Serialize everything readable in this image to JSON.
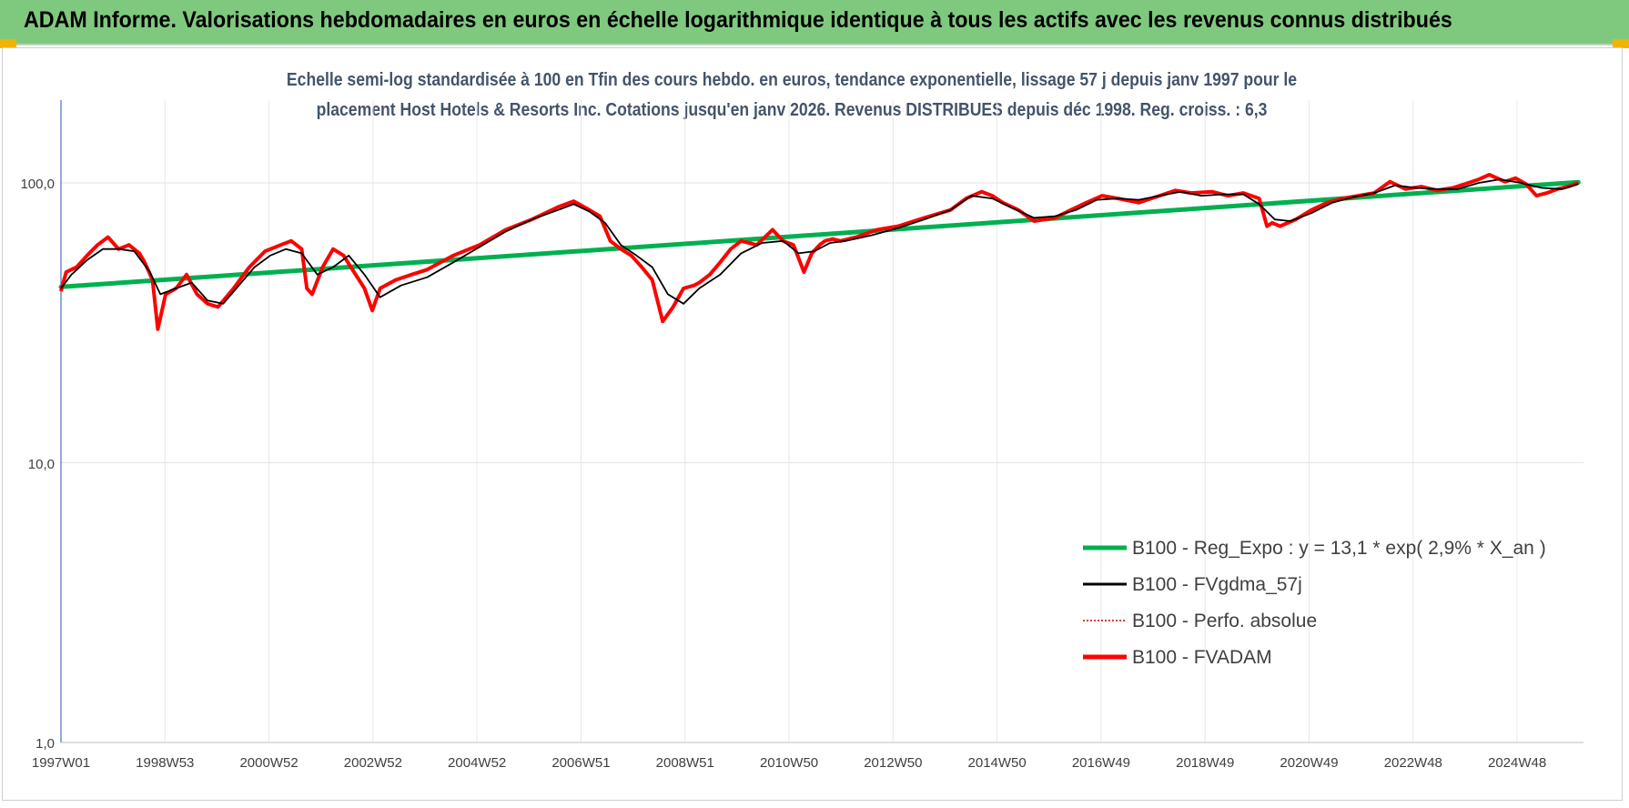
{
  "header": {
    "title": "ADAM Informe. Valorisations hebdomadaires en euros en échelle logarithmique identique à tous les actifs avec les revenus connus distribués"
  },
  "chart_data": {
    "type": "line",
    "title_line1": "Echelle semi-log standardisée à 100 en Tfin des cours hebdo. en euros, tendance exponentielle, lissage 57 j depuis janv 1997 pour le",
    "title_line2": "placement Host Hotels & Resorts Inc. Cotations jusqu'en janv 2026. Revenus DISTRIBUES depuis déc 1998. Reg. croiss. : 6,3",
    "y_scale": "log",
    "ylim": [
      1,
      180
    ],
    "y_ticks": [
      "1,0",
      "10,0",
      "100,0"
    ],
    "xlim": [
      1997.0,
      2026.1
    ],
    "x_tick_labels": [
      "1997W01",
      "1998W53",
      "2000W52",
      "2002W52",
      "2004W52",
      "2006W51",
      "2008W51",
      "2010W50",
      "2012W50",
      "2014W50",
      "2016W49",
      "2018W49",
      "2020W49",
      "2022W48",
      "2024W48"
    ],
    "grid": true,
    "legend_position": "bottom-right",
    "series": [
      {
        "name": "B100 - Reg_Expo : y = 13,1 * exp( 2,9% *  X_an )",
        "color": "#00b050",
        "style": "solid",
        "x": [
          1997.0,
          2026.0
        ],
        "y": [
          42.5,
          100.5
        ]
      },
      {
        "name": "B100 - FVgdma_57j",
        "color": "#000000",
        "style": "solid"
      },
      {
        "name": "B100 - Perfo. absolue",
        "color": "#c00000",
        "style": "dotted"
      },
      {
        "name": "B100 - FVADAM",
        "color": "#ff0000",
        "style": "solid"
      }
    ],
    "fvadam": {
      "x": [
        1997.0,
        1997.1,
        1997.3,
        1997.5,
        1997.7,
        1997.9,
        1998.1,
        1998.3,
        1998.5,
        1998.6,
        1998.75,
        1998.85,
        1999.0,
        1999.2,
        1999.4,
        1999.6,
        1999.8,
        2000.0,
        2000.3,
        2000.6,
        2000.9,
        2001.2,
        2001.4,
        2001.6,
        2001.7,
        2001.8,
        2002.0,
        2002.2,
        2002.4,
        2002.6,
        2002.8,
        2002.95,
        2003.1,
        2003.4,
        2003.7,
        2004.0,
        2004.5,
        2005.0,
        2005.5,
        2006.0,
        2006.5,
        2006.8,
        2007.1,
        2007.3,
        2007.5,
        2007.7,
        2007.9,
        2008.1,
        2008.3,
        2008.5,
        2008.7,
        2008.9,
        2009.1,
        2009.2,
        2009.4,
        2009.6,
        2009.8,
        2010.0,
        2010.3,
        2010.6,
        2010.8,
        2011.0,
        2011.2,
        2011.35,
        2011.5,
        2011.6,
        2011.75,
        2011.9,
        2012.2,
        2012.6,
        2013.0,
        2013.5,
        2014.0,
        2014.3,
        2014.6,
        2014.8,
        2015.0,
        2015.3,
        2015.6,
        2015.8,
        2016.0,
        2016.3,
        2016.6,
        2016.9,
        2017.2,
        2017.6,
        2018.0,
        2018.3,
        2018.6,
        2019.0,
        2019.3,
        2019.6,
        2019.9,
        2020.05,
        2020.15,
        2020.3,
        2020.6,
        2020.9,
        2021.2,
        2021.5,
        2021.8,
        2022.1,
        2022.4,
        2022.7,
        2023.0,
        2023.3,
        2023.6,
        2023.9,
        2024.1,
        2024.3,
        2024.6,
        2024.8,
        2025.0,
        2025.2,
        2025.4,
        2025.6,
        2025.8,
        2026.0
      ],
      "y": [
        41,
        48,
        50,
        55,
        60,
        64,
        58,
        60,
        56,
        52,
        45,
        30,
        40,
        42,
        47,
        40,
        37,
        36,
        42,
        50,
        57,
        60,
        62,
        58,
        42,
        40,
        50,
        58,
        55,
        48,
        42,
        35,
        42,
        45,
        47,
        49,
        55,
        60,
        68,
        74,
        82,
        86,
        80,
        76,
        62,
        58,
        55,
        50,
        45,
        32,
        36,
        42,
        43,
        44,
        47,
        52,
        58,
        62,
        60,
        68,
        62,
        60,
        48,
        56,
        60,
        62,
        63,
        62,
        64,
        68,
        70,
        75,
        80,
        88,
        93,
        90,
        85,
        80,
        73,
        74,
        75,
        80,
        85,
        90,
        88,
        85,
        90,
        94,
        92,
        93,
        90,
        92,
        88,
        70,
        72,
        70,
        74,
        80,
        85,
        88,
        90,
        92,
        101,
        95,
        97,
        94,
        96,
        100,
        103,
        107,
        101,
        104,
        99,
        90,
        92,
        95,
        97,
        100
      ]
    },
    "fvgdma": {
      "x": [
        1997.0,
        1997.2,
        1997.5,
        1997.8,
        1998.1,
        1998.4,
        1998.7,
        1998.9,
        1999.2,
        1999.5,
        1999.8,
        2000.1,
        2000.4,
        2000.7,
        2001.0,
        2001.3,
        2001.6,
        2001.9,
        2002.2,
        2002.5,
        2002.8,
        2003.1,
        2003.5,
        2004.0,
        2004.5,
        2005.0,
        2005.5,
        2006.0,
        2006.5,
        2006.8,
        2007.1,
        2007.4,
        2007.7,
        2008.0,
        2008.3,
        2008.6,
        2008.9,
        2009.2,
        2009.6,
        2010.0,
        2010.4,
        2010.8,
        2011.1,
        2011.4,
        2011.7,
        2012.0,
        2012.5,
        2013.0,
        2013.5,
        2014.0,
        2014.4,
        2014.8,
        2015.2,
        2015.6,
        2016.0,
        2016.4,
        2016.8,
        2017.2,
        2017.6,
        2018.0,
        2018.4,
        2018.8,
        2019.2,
        2019.6,
        2019.9,
        2020.2,
        2020.5,
        2020.9,
        2021.3,
        2021.7,
        2022.1,
        2022.5,
        2022.9,
        2023.3,
        2023.7,
        2024.1,
        2024.5,
        2024.9,
        2025.3,
        2025.7,
        2026.0
      ],
      "y": [
        42,
        47,
        53,
        58,
        58,
        57,
        48,
        40,
        42,
        44,
        38,
        37,
        43,
        50,
        55,
        58,
        56,
        47,
        50,
        55,
        47,
        39,
        43,
        46,
        52,
        59,
        67,
        74,
        80,
        84,
        79,
        72,
        60,
        55,
        50,
        40,
        37,
        42,
        47,
        56,
        61,
        62,
        56,
        57,
        61,
        62,
        65,
        69,
        74,
        80,
        90,
        88,
        81,
        75,
        76,
        80,
        87,
        88,
        87,
        90,
        93,
        90,
        91,
        91,
        84,
        74,
        73,
        78,
        85,
        89,
        92,
        98,
        96,
        95,
        95,
        100,
        103,
        100,
        96,
        95,
        99
      ]
    },
    "legend": {
      "reg_expo": "B100 - Reg_Expo : y = 13,1 * exp( 2,9% *  X_an )",
      "fvgdma": "B100 - FVgdma_57j",
      "perfo": "B100 - Perfo. absolue",
      "fvadam": "B100 - FVADAM"
    }
  },
  "colors": {
    "banner": "#7fc97f",
    "corner_accent": "#f2b400",
    "subtitle": "#44546a"
  }
}
